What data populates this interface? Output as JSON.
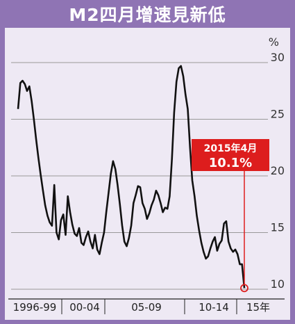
{
  "title": "M2四月增速見新低",
  "colors": {
    "frame": "#8f74b4",
    "panel": "#eee9f4",
    "line": "#111111",
    "grid": "#999999",
    "accent": "#dd1d1d"
  },
  "annotation": {
    "date": "2015年4月",
    "value": "10.1%",
    "point_index": 100
  },
  "chart_data": {
    "type": "line",
    "title": "M2四月增速見新低",
    "unit_label": "%",
    "ylim": [
      10,
      30
    ],
    "yticks": [
      "30",
      "25",
      "20",
      "15",
      "10"
    ],
    "xtick_labels": [
      "1996-99",
      "00-04",
      "05-09",
      "10-14",
      "15年"
    ],
    "grid": true,
    "series": [
      {
        "values": [
          25.9,
          28.2,
          28.4,
          28.1,
          27.5,
          27.9,
          26.6,
          25.0,
          23.2,
          21.6,
          20.1,
          18.7,
          17.4,
          16.5,
          15.9,
          15.6,
          19.2,
          15.0,
          14.4,
          16.1,
          16.6,
          14.8,
          18.2,
          16.8,
          15.7,
          14.9,
          14.7,
          15.4,
          14.1,
          13.9,
          14.6,
          15.1,
          14.2,
          13.6,
          14.8,
          13.5,
          13.1,
          14.1,
          15.0,
          16.8,
          18.5,
          20.2,
          21.3,
          20.6,
          19.2,
          17.5,
          15.6,
          14.2,
          13.8,
          14.5,
          15.6,
          17.6,
          18.3,
          19.1,
          19.0,
          17.6,
          17.1,
          16.2,
          16.7,
          17.4,
          17.9,
          18.7,
          18.3,
          17.6,
          16.8,
          17.2,
          17.1,
          18.2,
          21.5,
          25.6,
          28.3,
          29.5,
          29.7,
          28.8,
          27.2,
          25.9,
          22.5,
          19.6,
          18.2,
          16.5,
          15.2,
          14.1,
          13.3,
          12.7,
          12.9,
          13.6,
          14.2,
          14.6,
          13.4,
          14.0,
          14.3,
          15.8,
          16.0,
          14.2,
          13.6,
          13.3,
          13.5,
          13.1,
          12.2,
          12.2,
          10.1
        ]
      }
    ]
  }
}
